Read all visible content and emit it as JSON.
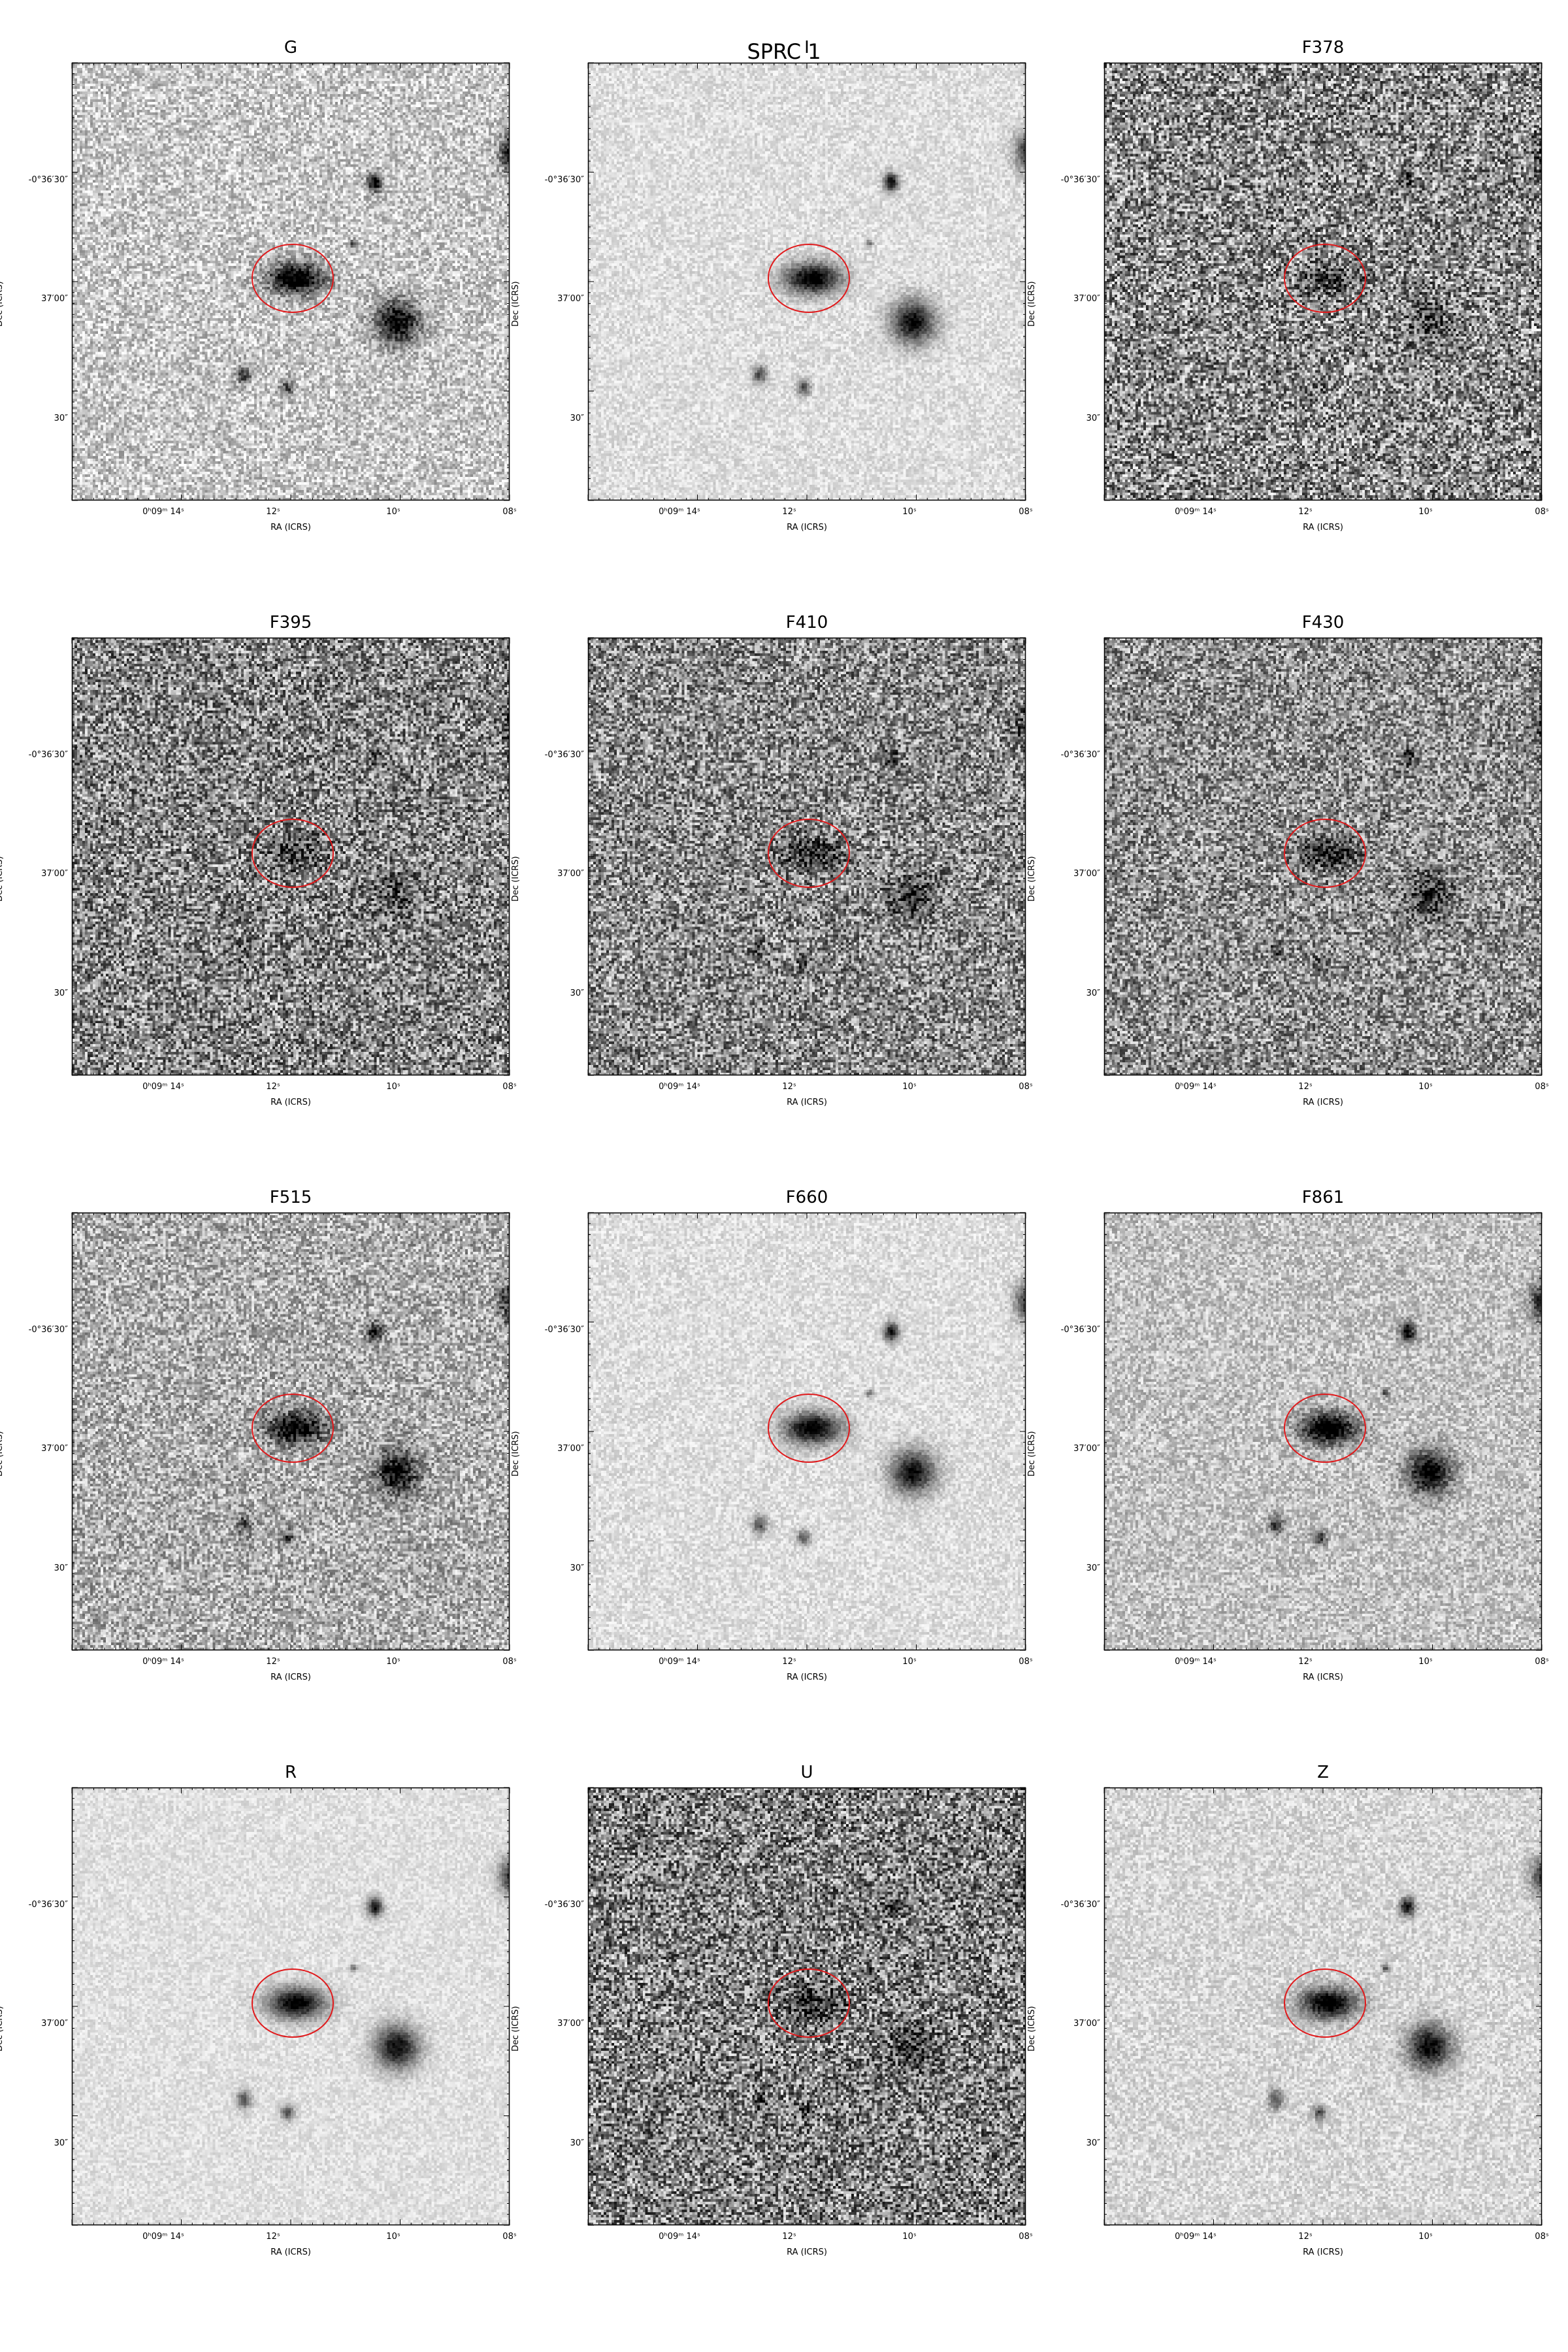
{
  "figure": {
    "title": "SPRC 1",
    "xaxis_label": "RA (ICRS)",
    "yaxis_label": "Dec (ICRS)",
    "x_ticks": [
      "0ʰ09ᵐ 14ˢ",
      "12ˢ",
      "10ˢ",
      "08ˢ"
    ],
    "y_ticks": [
      "-0°36′30″",
      "37′00″",
      "30″"
    ],
    "aperture_color": "#e0191b"
  },
  "panels": [
    {
      "name": "G",
      "noise": 0.55,
      "bg": 200,
      "depth": 1.0
    },
    {
      "name": "I",
      "noise": 0.25,
      "bg": 222,
      "depth": 1.0
    },
    {
      "name": "F378",
      "noise": 1.0,
      "bg": 140,
      "depth": 0.35
    },
    {
      "name": "F395",
      "noise": 0.95,
      "bg": 135,
      "depth": 0.3
    },
    {
      "name": "F410",
      "noise": 0.9,
      "bg": 140,
      "depth": 0.45
    },
    {
      "name": "F430",
      "noise": 0.85,
      "bg": 145,
      "depth": 0.5
    },
    {
      "name": "F515",
      "noise": 0.65,
      "bg": 175,
      "depth": 0.8
    },
    {
      "name": "F660",
      "noise": 0.25,
      "bg": 222,
      "depth": 1.0
    },
    {
      "name": "F861",
      "noise": 0.45,
      "bg": 195,
      "depth": 1.0
    },
    {
      "name": "R",
      "noise": 0.2,
      "bg": 224,
      "depth": 1.0
    },
    {
      "name": "U",
      "noise": 1.0,
      "bg": 130,
      "depth": 0.4
    },
    {
      "name": "Z",
      "noise": 0.3,
      "bg": 215,
      "depth": 1.0
    }
  ]
}
